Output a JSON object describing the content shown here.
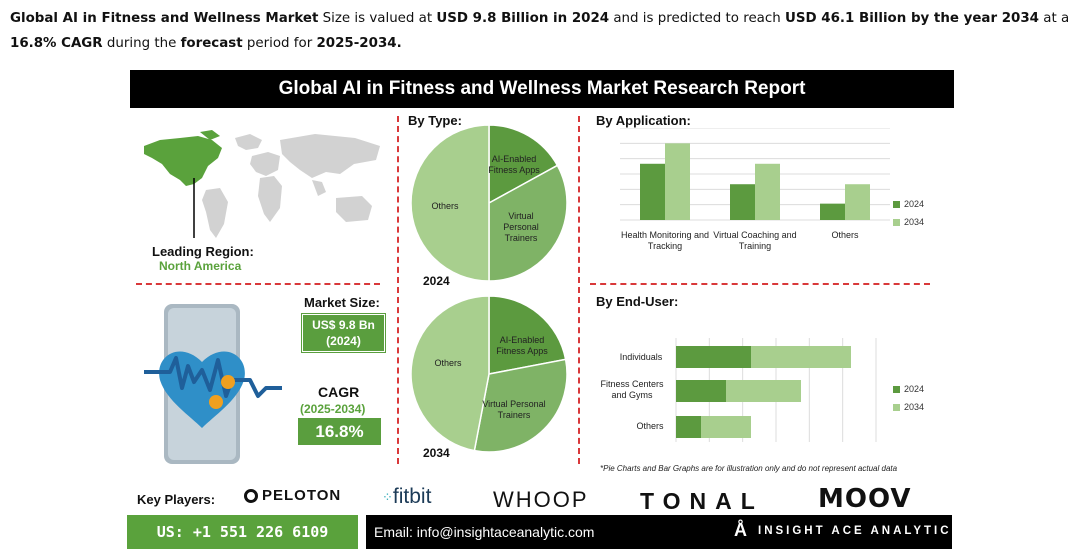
{
  "intro": {
    "p1": "Global AI in Fitness and Wellness Market",
    "p2": " Size is valued at ",
    "p3": "USD 9.8 Billion in 2024",
    "p4": " and is predicted to reach ",
    "p5": "USD 46.1 Billion by the year 2034",
    "p6": " at a ",
    "p7": "16.8% CAGR",
    "p8": " during the ",
    "p9": "forecast",
    "p10": " period for ",
    "p11": "2025-2034."
  },
  "banner": "Global AI in Fitness and Wellness Market Research Report",
  "region": {
    "label": "Leading Region:",
    "value": "North America"
  },
  "market_size": {
    "label": "Market Size:",
    "value_line1": "US$ 9.8 Bn",
    "value_line2": "(2024)"
  },
  "cagr": {
    "label": "CAGR",
    "period": "(2025-2034)",
    "value": "16.8%"
  },
  "by_type": {
    "title": "By Type:",
    "year1": "2024",
    "year2": "2034"
  },
  "by_application": {
    "title": "By Application:"
  },
  "by_end_user": {
    "title": "By End-User:"
  },
  "note": "*Pie Charts and Bar Graphs are for illustration only and do not represent actual data",
  "key_players": {
    "label": "Key Players:",
    "peloton": "PELOTON",
    "fitbit": "fitbit",
    "whoop": "WHOOP",
    "tonal": "TONAL",
    "moov": "MOOV"
  },
  "contact": {
    "phone": "US: +1 551 226 6109",
    "email": "Email: info@insightaceanalytic.com",
    "brand": "INSIGHT ACE ANALYTIC"
  },
  "colors": {
    "dark_green": "#5c9a3f",
    "light_green": "#a8cf8e",
    "mid_green": "#7fb366",
    "red": "#d9383a"
  },
  "chart_data": [
    {
      "type": "pie",
      "title": "By Type: 2024",
      "categories": [
        "AI-Enabled Fitness Apps",
        "Virtual Personal Trainers",
        "Others"
      ],
      "values": [
        17,
        33,
        50
      ],
      "colors": [
        "#5c9a3f",
        "#7fb366",
        "#a8cf8e"
      ]
    },
    {
      "type": "pie",
      "title": "By Type: 2034",
      "categories": [
        "AI-Enabled Fitness Apps",
        "Virtual Personal Trainers",
        "Others"
      ],
      "values": [
        22,
        31,
        47
      ],
      "colors": [
        "#5c9a3f",
        "#7fb366",
        "#a8cf8e"
      ]
    },
    {
      "type": "bar",
      "title": "By Application:",
      "categories": [
        "Health Monitoring and Tracking",
        "Virtual Coaching and Training",
        "Others"
      ],
      "series": [
        {
          "name": "2024",
          "values": [
            5.5,
            3.5,
            1.6
          ]
        },
        {
          "name": "2034",
          "values": [
            7.5,
            5.5,
            3.5
          ]
        }
      ],
      "ylim": [
        0,
        9
      ],
      "grid": true,
      "legend": "right"
    },
    {
      "type": "bar",
      "orientation": "horizontal",
      "title": "By End-User:",
      "categories": [
        "Individuals",
        "Fitness Centers and Gyms",
        "Others"
      ],
      "series": [
        {
          "name": "2024",
          "values": [
            3.0,
            2.0,
            1.0
          ]
        },
        {
          "name": "2034",
          "values": [
            4.0,
            3.0,
            2.0
          ]
        }
      ],
      "stacked": true,
      "xlim": [
        0,
        8
      ],
      "grid": true,
      "legend": "right"
    }
  ]
}
